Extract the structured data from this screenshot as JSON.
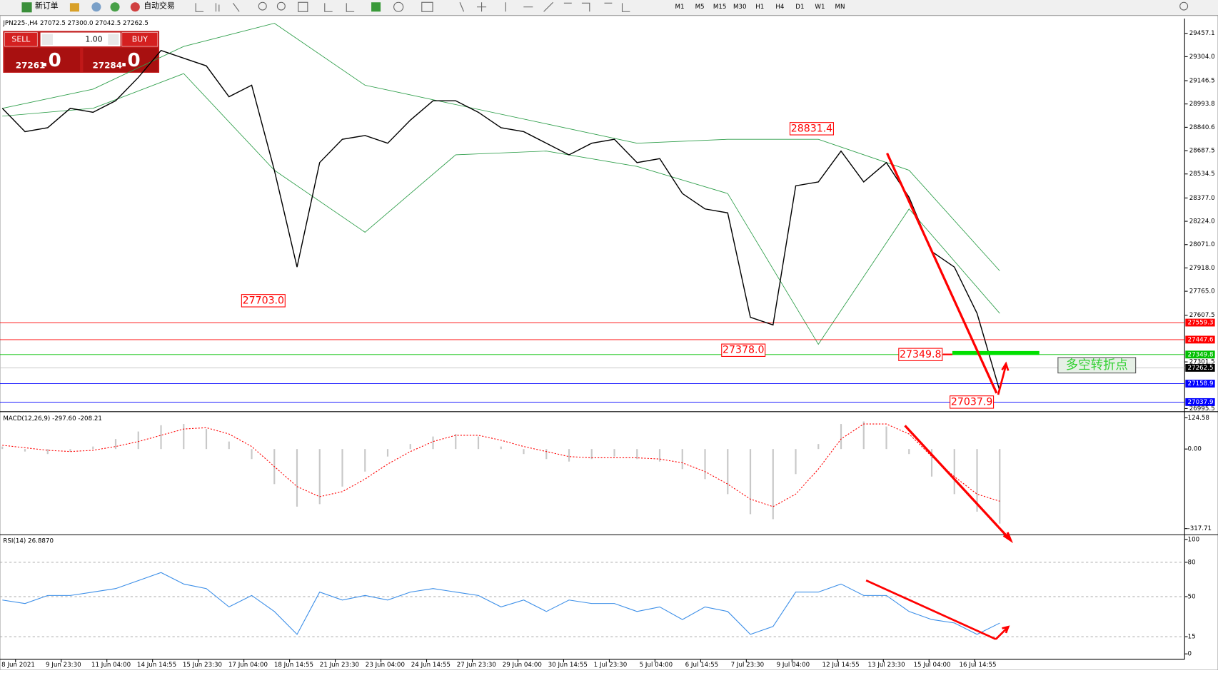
{
  "toolbar": {
    "buttons": [
      "新订单",
      "自动交易"
    ],
    "timeframes": [
      "M1",
      "M5",
      "M15",
      "M30",
      "H1",
      "H4",
      "D1",
      "W1",
      "MN"
    ]
  },
  "chart_header": "JPN225-,H4  27072.5 27300.0 27042.5 27262.5",
  "trade_panel": {
    "sell": "SELL",
    "buy": "BUY",
    "volume": "1.00",
    "sell_price": "27261",
    "sell_price_big": ".0",
    "buy_price": "27284",
    "buy_price_big": ".0"
  },
  "price_panel": {
    "ylim": [
      26985,
      29554
    ],
    "yticks": [
      29457.1,
      {
        "value": 29304,
        "label": "29304.0"
      },
      29146.5,
      28993.8,
      28840.6,
      28687.5,
      28534.5,
      {
        "value": 28377,
        "label": "28377.0"
      },
      {
        "value": 28224,
        "label": "28224.0"
      },
      {
        "value": 28071,
        "label": "28071.0"
      },
      {
        "value": 27918,
        "label": "27918.0"
      },
      {
        "value": 27765,
        "label": "27765.0"
      },
      27607.5,
      27301.5,
      26995.5
    ],
    "close": [
      28965,
      28812,
      28838,
      28965,
      28939,
      29015,
      29168,
      29345,
      29294,
      29244,
      29041,
      29117,
      28559,
      27924,
      28609,
      28762,
      28787,
      28736,
      28888,
      29015,
      29015,
      28939,
      28838,
      28812,
      28736,
      28660,
      28736,
      28762,
      28609,
      28635,
      28406,
      28305,
      28279,
      27594,
      27544,
      28457,
      28482,
      28685,
      28482,
      28609,
      28381,
      28026,
      27924,
      27620,
      27112
    ],
    "bb_upper": [
      28965,
      29091,
      29371,
      29523,
      29117,
      28990,
      28863,
      28736,
      28762,
      28762,
      28559,
      27899
    ],
    "bb_lower": [
      28914,
      28965,
      29193,
      28559,
      28152,
      28660,
      28685,
      28584,
      28406,
      27417,
      28305,
      27620
    ],
    "levels": [
      {
        "value": 27559.3,
        "color": "#ff0000"
      },
      {
        "value": 27447.6,
        "color": "#ff0000"
      },
      {
        "value": 27349.8,
        "color": "#00c000"
      },
      {
        "value": 27262.5,
        "color": "#c0c0c0"
      },
      {
        "value": 27158.9,
        "color": "#0000ff"
      },
      {
        "value": 27037.9,
        "color": "#0000ff"
      }
    ],
    "annotations": [
      28831.4,
      {
        "value": 27703,
        "label": "27703.0"
      },
      {
        "value": 27378,
        "label": "27378.0"
      },
      27349.8,
      27037.9
    ],
    "turning_point_label": "多空转折点"
  },
  "macd": {
    "label": "MACD(12,26,9) -297.60 -208.21",
    "ylim": [
      -339,
      146
    ],
    "yticks": [
      124.58,
      {
        "value": 0,
        "label": "0.00"
      },
      -317.71
    ],
    "histogram": [
      10,
      -10,
      -20,
      -10,
      10,
      40,
      70,
      95,
      100,
      80,
      30,
      -40,
      -140,
      -230,
      -220,
      -150,
      -90,
      -30,
      20,
      50,
      60,
      50,
      10,
      -20,
      -40,
      -50,
      -40,
      -30,
      -40,
      -50,
      -80,
      -120,
      -180,
      -260,
      -280,
      -100,
      20,
      100,
      110,
      90,
      -20,
      -110,
      -180,
      -250,
      -297.6
    ],
    "signal": [
      15,
      5,
      -5,
      -10,
      -5,
      10,
      30,
      55,
      80,
      85,
      60,
      10,
      -70,
      -150,
      -190,
      -170,
      -120,
      -60,
      -10,
      30,
      55,
      55,
      35,
      10,
      -10,
      -30,
      -35,
      -35,
      -35,
      -40,
      -55,
      -90,
      -140,
      -200,
      -230,
      -180,
      -80,
      40,
      100,
      100,
      60,
      -30,
      -110,
      -180,
      -208.21
    ]
  },
  "rsi": {
    "label": "RSI(14) 26.8870",
    "ylim": [
      -3.4,
      103.4
    ],
    "yticks": [
      100,
      80,
      50,
      15,
      0
    ],
    "values": [
      47,
      44,
      51,
      51,
      54,
      57,
      64,
      71,
      61,
      57,
      41,
      51,
      37,
      17,
      54,
      47,
      51,
      47,
      54,
      57,
      54,
      51,
      41,
      47,
      37,
      47,
      44,
      44,
      37,
      41,
      30,
      41,
      37,
      17,
      24,
      54,
      54,
      61,
      51,
      51,
      37,
      30,
      27,
      17,
      26.887
    ]
  },
  "x_labels": [
    "8 Jun 2021",
    "9 Jun 23:30",
    "11 Jun 04:00",
    "14 Jun 14:55",
    "15 Jun 23:30",
    "17 Jun 04:00",
    "18 Jun 14:55",
    "21 Jun 23:30",
    "23 Jun 04:00",
    "24 Jun 14:55",
    "27 Jun 23:30",
    "29 Jun 04:00",
    "30 Jun 14:55",
    "1 Jul 23:30",
    "5 Jul 04:00",
    "6 Jul 14:55",
    "7 Jul 23:30",
    "9 Jul 04:00",
    "12 Jul 14:55",
    "13 Jul 23:30",
    "15 Jul 04:00",
    "16 Jul 14:55"
  ]
}
